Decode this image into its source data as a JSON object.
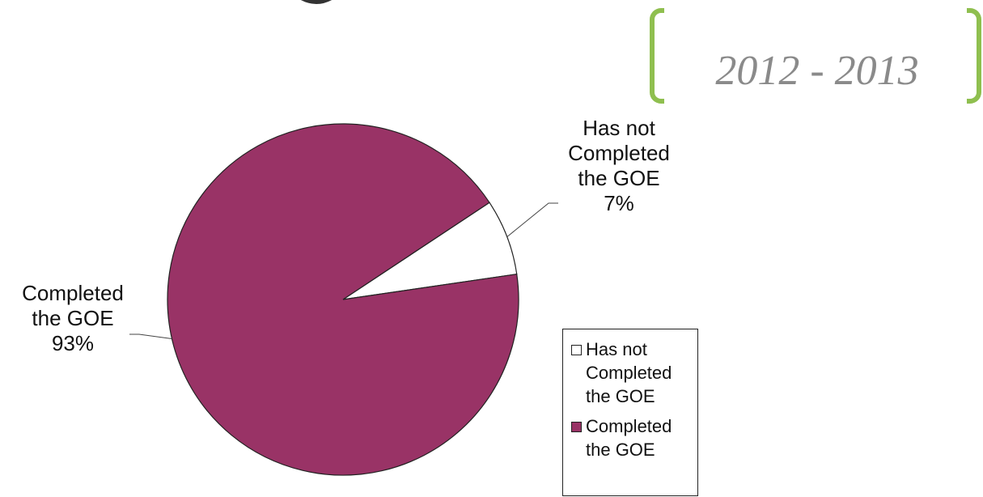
{
  "header": {
    "year_range": "2012 - 2013"
  },
  "colors": {
    "completed": "#993366",
    "not_completed": "#ffffff",
    "bracket": "#8fbf4f",
    "year_text": "#8a8a8a",
    "outline": "#222222"
  },
  "chart_data": {
    "type": "pie",
    "slices": [
      {
        "name": "Has not Completed the GOE",
        "label_lines": [
          "Has not",
          "Completed",
          "the GOE"
        ],
        "percent_label": "7%",
        "value": 7,
        "color": "#ffffff"
      },
      {
        "name": "Completed the GOE",
        "label_lines": [
          "Completed",
          "the GOE"
        ],
        "percent_label": "93%",
        "value": 93,
        "color": "#993366"
      }
    ],
    "legend": {
      "placement": "right",
      "entries": [
        {
          "label": "Has not Completed the GOE",
          "color": "#ffffff"
        },
        {
          "label": "Completed the GOE",
          "color": "#993366"
        }
      ]
    }
  }
}
